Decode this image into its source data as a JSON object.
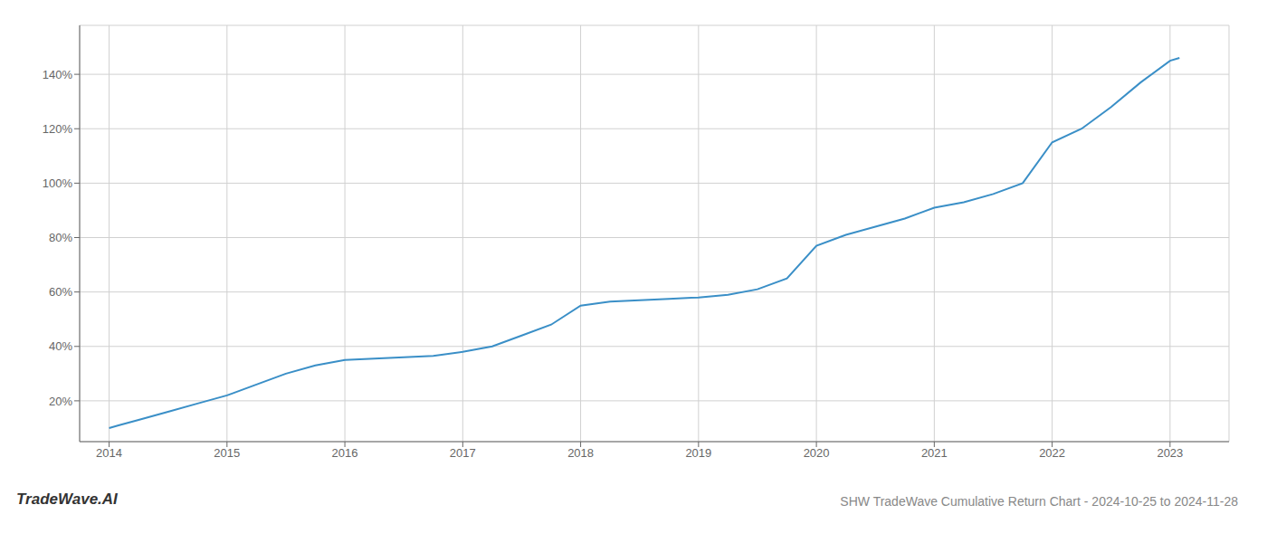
{
  "chart_data": {
    "type": "line",
    "title": "SHW TradeWave Cumulative Return Chart - 2024-10-25 to 2024-11-28",
    "annotations": [
      "TradeWave.AI"
    ],
    "x": [
      2014.0,
      2014.08,
      2014.25,
      2014.5,
      2014.75,
      2015.0,
      2015.25,
      2015.5,
      2015.75,
      2016.0,
      2016.25,
      2016.5,
      2016.75,
      2017.0,
      2017.25,
      2017.5,
      2017.75,
      2018.0,
      2018.25,
      2018.5,
      2018.75,
      2019.0,
      2019.25,
      2019.5,
      2019.75,
      2020.0,
      2020.25,
      2020.5,
      2020.75,
      2021.0,
      2021.25,
      2021.5,
      2021.75,
      2022.0,
      2022.25,
      2022.5,
      2022.75,
      2023.0,
      2023.08
    ],
    "values": [
      10,
      11,
      13,
      16,
      19,
      22,
      26,
      30,
      33,
      35,
      35.5,
      36,
      36.5,
      38,
      40,
      44,
      48,
      55,
      56.5,
      57,
      57.5,
      58,
      59,
      61,
      65,
      77,
      81,
      84,
      87,
      91,
      93,
      96,
      100,
      115,
      120,
      128,
      137,
      145,
      146
    ],
    "color": "#3a8fc7",
    "xlim": [
      2013.75,
      2023.5
    ],
    "ylim": [
      5,
      158
    ],
    "xticks": [
      2014,
      2015,
      2016,
      2017,
      2018,
      2019,
      2020,
      2021,
      2022,
      2023
    ],
    "yticks": [
      {
        "value": 20,
        "label": "20%"
      },
      {
        "value": 40,
        "label": "40%"
      },
      {
        "value": 60,
        "label": "60%"
      },
      {
        "value": 80,
        "label": "80%"
      },
      {
        "value": 100,
        "label": "100%"
      },
      {
        "value": 120,
        "label": "120%"
      },
      {
        "value": 140,
        "label": "140%"
      }
    ],
    "grid": true
  }
}
